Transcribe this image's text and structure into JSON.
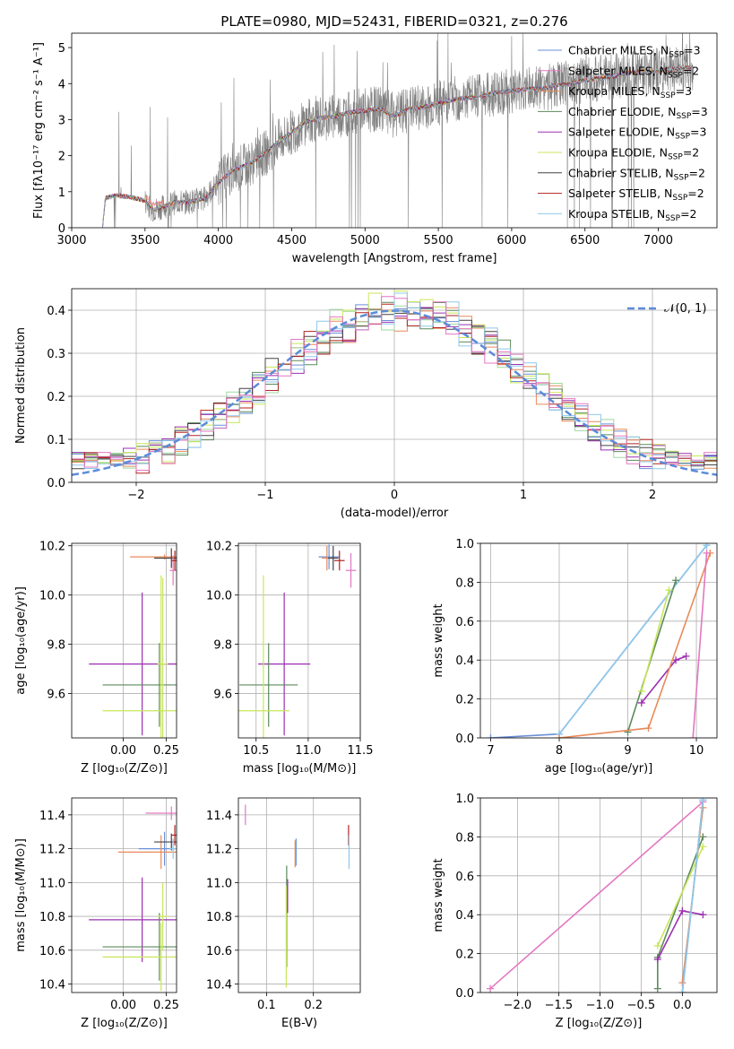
{
  "colors": {
    "Chabrier MILES": "#6a8fd8",
    "Salpeter MILES": "#e88a5a",
    "Kroupa MILES": "#9fd8a0",
    "Chabrier ELODIE": "#5c8a5c",
    "Salpeter ELODIE": "#9b30b0",
    "Kroupa ELODIE": "#c8e65a",
    "Chabrier STELIB": "#444444",
    "Salpeter STELIB": "#b22222",
    "Kroupa STELIB": "#8ec8e8",
    "extra": "#e377c2",
    "flux": "#808080",
    "gauss": "#5b8bd9"
  },
  "chart_data": [
    {
      "id": "spectrum",
      "type": "line",
      "title": "PLATE=0980, MJD=52431, FIBERID=0321, z=0.276",
      "xlabel": "wavelength [Angstrom, rest frame]",
      "ylabel": "Flux [f_λ 10^-17 erg cm^-2 s^-1 A^-1]",
      "xlim": [
        3000,
        7400
      ],
      "ylim": [
        0,
        5.4
      ],
      "xticks": [
        3000,
        3500,
        4000,
        4500,
        5000,
        5500,
        6000,
        6500,
        7000
      ],
      "yticks": [
        0,
        1,
        2,
        3,
        4,
        5
      ],
      "grid": false,
      "legend_position": "top-right",
      "legend": [
        {
          "label": "Chabrier MILES, N",
          "sub": "SSP",
          "suffix": "=3",
          "color": "Chabrier MILES"
        },
        {
          "label": "Salpeter MILES, N",
          "sub": "SSP",
          "suffix": "=2",
          "color": "extra"
        },
        {
          "label": "Kroupa MILES, N",
          "sub": "SSP",
          "suffix": "=3",
          "color": "Salpeter MILES"
        },
        {
          "label": "Chabrier ELODIE, N",
          "sub": "SSP",
          "suffix": "=3",
          "color": "Chabrier ELODIE"
        },
        {
          "label": "Salpeter ELODIE, N",
          "sub": "SSP",
          "suffix": "=3",
          "color": "Salpeter ELODIE"
        },
        {
          "label": "Kroupa ELODIE, N",
          "sub": "SSP",
          "suffix": "=2",
          "color": "Kroupa ELODIE"
        },
        {
          "label": "Chabrier STELIB, N",
          "sub": "SSP",
          "suffix": "=2",
          "color": "Chabrier STELIB"
        },
        {
          "label": "Salpeter STELIB, N",
          "sub": "SSP",
          "suffix": "=2",
          "color": "Salpeter STELIB"
        },
        {
          "label": "Kroupa STELIB, N",
          "sub": "SSP",
          "suffix": "=2",
          "color": "Kroupa STELIB"
        }
      ],
      "continuum": [
        [
          3210,
          0.0
        ],
        [
          3230,
          0.82
        ],
        [
          3300,
          0.9
        ],
        [
          3400,
          0.85
        ],
        [
          3500,
          0.75
        ],
        [
          3550,
          0.5
        ],
        [
          3600,
          0.55
        ],
        [
          3700,
          0.7
        ],
        [
          3800,
          0.72
        ],
        [
          3900,
          0.8
        ],
        [
          4000,
          1.25
        ],
        [
          4100,
          1.6
        ],
        [
          4200,
          1.75
        ],
        [
          4300,
          2.0
        ],
        [
          4400,
          2.35
        ],
        [
          4500,
          2.65
        ],
        [
          4600,
          2.95
        ],
        [
          4700,
          3.05
        ],
        [
          4800,
          3.1
        ],
        [
          4900,
          3.2
        ],
        [
          5000,
          3.25
        ],
        [
          5100,
          3.3
        ],
        [
          5200,
          3.1
        ],
        [
          5300,
          3.3
        ],
        [
          5400,
          3.35
        ],
        [
          5500,
          3.45
        ],
        [
          5600,
          3.55
        ],
        [
          5700,
          3.6
        ],
        [
          5800,
          3.65
        ],
        [
          5900,
          3.75
        ],
        [
          6000,
          3.8
        ],
        [
          6100,
          3.85
        ],
        [
          6200,
          3.85
        ],
        [
          6300,
          3.95
        ],
        [
          6400,
          4.0
        ],
        [
          6500,
          4.1
        ],
        [
          6600,
          4.15
        ],
        [
          6700,
          4.2
        ],
        [
          6800,
          4.3
        ],
        [
          6900,
          4.35
        ],
        [
          7000,
          4.35
        ],
        [
          7100,
          4.4
        ],
        [
          7200,
          4.45
        ]
      ]
    },
    {
      "id": "residuals",
      "type": "histogram",
      "xlabel": "(data-model)/error",
      "ylabel": "Normed distribution",
      "xlim": [
        -2.5,
        2.5
      ],
      "ylim": [
        0,
        0.45
      ],
      "xticks": [
        -2,
        -1,
        0,
        1,
        2
      ],
      "yticks": [
        0.0,
        0.1,
        0.2,
        0.3,
        0.4
      ],
      "grid": true,
      "legend_position": "top-right",
      "legend_label": "𝒩(0, 1)",
      "bin_width": 0.1
    },
    {
      "id": "age-vs-Z",
      "type": "errorbar",
      "xlabel": "Z [log10(Z/Z⊙)]",
      "ylabel": "age [log10(age/yr)]",
      "xlim": [
        -0.3,
        0.31
      ],
      "ylim": [
        9.42,
        10.21
      ],
      "xticks": [
        0.0,
        0.25
      ],
      "yticks": [
        9.6,
        9.8,
        10.0,
        10.2
      ],
      "grid": true,
      "points": [
        {
          "c": "Salpeter ELODIE",
          "x": 0.11,
          "xe": 0.31,
          "y": 9.72,
          "ye": 0.29
        },
        {
          "c": "Chabrier ELODIE",
          "x": 0.21,
          "xe": 0.33,
          "y": 9.635,
          "ye": 0.17
        },
        {
          "c": "Kroupa ELODIE",
          "x": 0.22,
          "xe": 0.34,
          "y": 9.53,
          "ye": 0.55
        },
        {
          "c": "Kroupa ELODIE",
          "x": 0.23,
          "xe": 0.03,
          "y": 9.72,
          "ye": 0.35
        },
        {
          "c": "Salpeter MILES",
          "x": 0.24,
          "xe": 0.2,
          "y": 10.155,
          "ye": 0.01
        },
        {
          "c": "Chabrier STELIB",
          "x": 0.28,
          "xe": 0.1,
          "y": 10.15,
          "ye": 0.04
        },
        {
          "c": "extra",
          "x": 0.29,
          "xe": 0.02,
          "y": 10.1,
          "ye": 0.06
        },
        {
          "c": "Salpeter STELIB",
          "x": 0.3,
          "xe": 0.02,
          "y": 10.14,
          "ye": 0.04
        }
      ]
    },
    {
      "id": "age-vs-mass",
      "type": "errorbar",
      "xlabel": "mass [log10(M/M⊙)]",
      "ylabel": "",
      "xlim": [
        10.33,
        11.5
      ],
      "ylim": [
        9.42,
        10.21
      ],
      "xticks": [
        10.5,
        11.0,
        11.5
      ],
      "yticks": [
        9.6,
        9.8,
        10.0,
        10.2
      ],
      "grid": true,
      "points": [
        {
          "c": "Salpeter ELODIE",
          "x": 10.77,
          "xe": 0.25,
          "y": 9.72,
          "ye": 0.29
        },
        {
          "c": "Chabrier ELODIE",
          "x": 10.62,
          "xe": 0.28,
          "y": 9.635,
          "ye": 0.17
        },
        {
          "c": "Kroupa ELODIE",
          "x": 10.57,
          "xe": 0.25,
          "y": 9.53,
          "ye": 0.55
        },
        {
          "c": "Chabrier MILES",
          "x": 11.2,
          "xe": 0.1,
          "y": 10.155,
          "ye": 0.05
        },
        {
          "c": "Salpeter MILES",
          "x": 11.18,
          "xe": 0.05,
          "y": 10.15,
          "ye": 0.05
        },
        {
          "c": "Chabrier STELIB",
          "x": 11.24,
          "xe": 0.05,
          "y": 10.15,
          "ye": 0.05
        },
        {
          "c": "Salpeter STELIB",
          "x": 11.3,
          "xe": 0.05,
          "y": 10.14,
          "ye": 0.04
        },
        {
          "c": "extra",
          "x": 11.41,
          "xe": 0.05,
          "y": 10.1,
          "ye": 0.07
        }
      ]
    },
    {
      "id": "massweight-vs-age",
      "type": "line",
      "xlabel": "age [log10(age/yr)]",
      "ylabel": "mass weight",
      "xlim": [
        6.85,
        10.3
      ],
      "ylim": [
        0,
        1
      ],
      "xticks": [
        7,
        8,
        9,
        10
      ],
      "yticks": [
        0.0,
        0.2,
        0.4,
        0.6,
        0.8,
        1.0
      ],
      "grid": true,
      "series": [
        {
          "c": "Chabrier MILES",
          "x": [
            7.0,
            8.0,
            10.15
          ],
          "y": [
            0.0,
            0.02,
            0.99
          ]
        },
        {
          "c": "Kroupa STELIB",
          "x": [
            8.0,
            10.15
          ],
          "y": [
            0.02,
            0.99
          ]
        },
        {
          "c": "Chabrier ELODIE",
          "x": [
            9.0,
            9.7
          ],
          "y": [
            0.03,
            0.81
          ]
        },
        {
          "c": "Kroupa ELODIE",
          "x": [
            9.2,
            9.6
          ],
          "y": [
            0.24,
            0.76
          ]
        },
        {
          "c": "Salpeter ELODIE",
          "x": [
            9.2,
            9.7,
            9.85
          ],
          "y": [
            0.18,
            0.4,
            0.42
          ]
        },
        {
          "c": "Salpeter MILES",
          "x": [
            8.0,
            9.3,
            10.2
          ],
          "y": [
            0.0,
            0.05,
            0.95
          ]
        },
        {
          "c": "extra",
          "x": [
            9.95,
            10.15
          ],
          "y": [
            0.0,
            0.95
          ]
        }
      ]
    },
    {
      "id": "mass-vs-Z",
      "type": "errorbar",
      "xlabel": "Z [log10(Z/Z⊙)]",
      "ylabel": "mass [log10(M/M⊙)]",
      "xlim": [
        -0.3,
        0.31
      ],
      "ylim": [
        10.35,
        11.5
      ],
      "xticks": [
        0.0,
        0.25
      ],
      "yticks": [
        10.4,
        10.6,
        10.8,
        11.0,
        11.2,
        11.4
      ],
      "grid": true,
      "points": [
        {
          "c": "Salpeter ELODIE",
          "x": 0.11,
          "xe": 0.31,
          "y": 10.78,
          "ye": 0.25
        },
        {
          "c": "Chabrier ELODIE",
          "x": 0.21,
          "xe": 0.33,
          "y": 10.62,
          "ye": 0.2
        },
        {
          "c": "Kroupa ELODIE",
          "x": 0.22,
          "xe": 0.34,
          "y": 10.56,
          "ye": 0.2
        },
        {
          "c": "Kroupa ELODIE",
          "x": 0.23,
          "xe": 0.03,
          "y": 10.8,
          "ye": 0.2
        },
        {
          "c": "Chabrier MILES",
          "x": 0.24,
          "xe": 0.15,
          "y": 11.2,
          "ye": 0.1
        },
        {
          "c": "Salpeter MILES",
          "x": 0.22,
          "xe": 0.25,
          "y": 11.18,
          "ye": 0.1
        },
        {
          "c": "Chabrier STELIB",
          "x": 0.28,
          "xe": 0.1,
          "y": 11.24,
          "ye": 0.05
        },
        {
          "c": "extra",
          "x": 0.28,
          "xe": 0.15,
          "y": 11.41,
          "ye": 0.04
        },
        {
          "c": "Salpeter STELIB",
          "x": 0.3,
          "xe": 0.02,
          "y": 11.28,
          "ye": 0.06
        },
        {
          "c": "Kroupa STELIB",
          "x": 0.29,
          "xe": 0.02,
          "y": 11.2,
          "ye": 0.06
        }
      ]
    },
    {
      "id": "mass-vs-ebv",
      "type": "errorbar",
      "xlabel": "E(B-V)",
      "ylabel": "",
      "xlim": [
        0.04,
        0.3
      ],
      "ylim": [
        10.35,
        11.5
      ],
      "xticks": [
        0.1,
        0.2
      ],
      "yticks": [
        10.4,
        10.6,
        10.8,
        11.0,
        11.2,
        11.4
      ],
      "grid": true,
      "points": [
        {
          "c": "extra",
          "x": 0.055,
          "xe": 0,
          "y": 11.4,
          "ye": 0.06
        },
        {
          "c": "Salpeter ELODIE",
          "x": 0.145,
          "xe": 0,
          "y": 10.92,
          "ye": 0.1
        },
        {
          "c": "Chabrier ELODIE",
          "x": 0.143,
          "xe": 0,
          "y": 10.8,
          "ye": 0.3
        },
        {
          "c": "Kroupa ELODIE",
          "x": 0.142,
          "xe": 0,
          "y": 10.68,
          "ye": 0.3
        },
        {
          "c": "Chabrier MILES",
          "x": 0.163,
          "xe": 0,
          "y": 11.18,
          "ye": 0.08
        },
        {
          "c": "Salpeter MILES",
          "x": 0.161,
          "xe": 0,
          "y": 11.17,
          "ye": 0.08
        },
        {
          "c": "Salpeter STELIB",
          "x": 0.275,
          "xe": 0,
          "y": 11.28,
          "ye": 0.06
        },
        {
          "c": "Kroupa STELIB",
          "x": 0.276,
          "xe": 0,
          "y": 11.18,
          "ye": 0.1
        }
      ]
    },
    {
      "id": "massweight-vs-Z",
      "type": "line",
      "xlabel": "Z [log10(Z/Z⊙)]",
      "ylabel": "mass weight",
      "xlim": [
        -2.45,
        0.42
      ],
      "ylim": [
        0,
        1
      ],
      "xticks": [
        -2.0,
        -1.5,
        -1.0,
        -0.5,
        0.0
      ],
      "yticks": [
        0.0,
        0.2,
        0.4,
        0.6,
        0.8,
        1.0
      ],
      "grid": true,
      "series": [
        {
          "c": "extra",
          "x": [
            -2.33,
            0.25
          ],
          "y": [
            0.02,
            0.98
          ]
        },
        {
          "c": "Chabrier ELODIE",
          "x": [
            -0.3,
            -0.3,
            0.25
          ],
          "y": [
            0.02,
            0.18,
            0.8
          ]
        },
        {
          "c": "Kroupa ELODIE",
          "x": [
            -0.3,
            0.25
          ],
          "y": [
            0.24,
            0.75
          ]
        },
        {
          "c": "Salpeter ELODIE",
          "x": [
            -0.3,
            0.0,
            0.25
          ],
          "y": [
            0.17,
            0.42,
            0.4
          ]
        },
        {
          "c": "Salpeter MILES",
          "x": [
            0.0,
            0.25
          ],
          "y": [
            0.05,
            0.95
          ]
        },
        {
          "c": "Chabrier MILES",
          "x": [
            0.0,
            0.25
          ],
          "y": [
            0.0,
            0.99
          ]
        },
        {
          "c": "Kroupa STELIB",
          "x": [
            0.0,
            0.25
          ],
          "y": [
            0.0,
            0.99
          ]
        }
      ]
    }
  ]
}
